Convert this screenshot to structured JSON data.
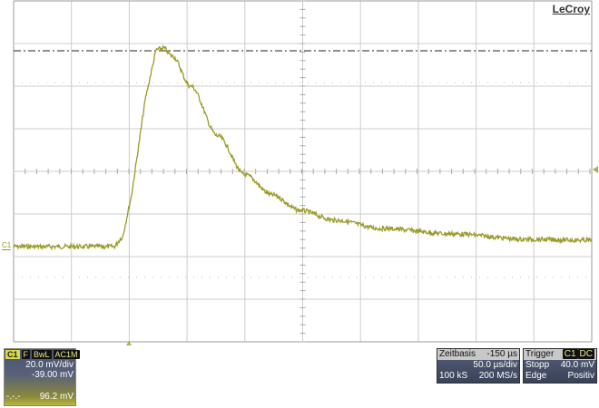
{
  "logo": "LeCroy",
  "channel_marker": "C1",
  "channel": {
    "label": "C1",
    "badges": [
      "F",
      "BwL",
      "AC1M"
    ],
    "scale": "20.0 mV/div",
    "offset": "-39.00 mV",
    "measure_label": "-.-.-",
    "measure_value": "96.2 mV",
    "color": "#9a9a2a"
  },
  "timebase": {
    "title": "Zeitbasis",
    "delay": "-150 µs",
    "scale": "50.0 µs/div",
    "samples": "100 kS",
    "rate": "200 MS/s"
  },
  "trigger": {
    "title": "Trigger",
    "source": "C1",
    "coupling": "DC",
    "mode": "Stopp",
    "level": "40.0 mV",
    "type": "Edge",
    "slope": "Positiv"
  }
}
